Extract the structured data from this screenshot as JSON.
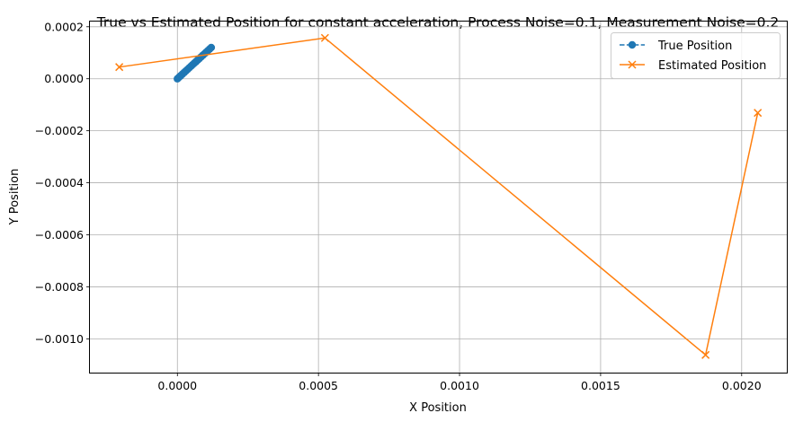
{
  "chart_data": {
    "type": "line",
    "title": "True vs Estimated Position for constant acceleration, Process Noise=0.1, Measurement Noise=0.2",
    "xlabel": "X Position",
    "ylabel": "Y Position",
    "xlim": [
      -0.00031,
      0.00216
    ],
    "ylim": [
      -0.00113,
      0.00022
    ],
    "grid": true,
    "legend_position": "top-right",
    "x_ticks": [
      0.0,
      0.0005,
      0.001,
      0.0015,
      0.002
    ],
    "x_tick_labels": [
      "0.0000",
      "0.0005",
      "0.0010",
      "0.0015",
      "0.0020"
    ],
    "y_ticks": [
      0.0002,
      0.0,
      -0.0002,
      -0.0004,
      -0.0006,
      -0.0008,
      -0.001
    ],
    "y_tick_labels": [
      "0.0002",
      "0.0000",
      "−0.0002",
      "−0.0004",
      "−0.0006",
      "−0.0008",
      "−0.0010"
    ],
    "series": [
      {
        "name": "True Position",
        "color": "#1f77b4",
        "marker": "circle",
        "line_style": "dashed",
        "x": [
          0.0,
          6e-06,
          1.2e-05,
          1.8e-05,
          2.4e-05,
          3e-05,
          3.6e-05,
          4.2e-05,
          4.8e-05,
          5.4e-05,
          6e-05,
          6.6e-05,
          7.2e-05,
          7.8e-05,
          8.4e-05,
          9e-05,
          9.6e-05,
          0.000102,
          0.000108,
          0.000114,
          0.00012
        ],
        "y": [
          0.0,
          6e-06,
          1.2e-05,
          1.8e-05,
          2.4e-05,
          3e-05,
          3.6e-05,
          4.2e-05,
          4.8e-05,
          5.4e-05,
          6e-05,
          6.6e-05,
          7.2e-05,
          7.8e-05,
          8.4e-05,
          9e-05,
          9.6e-05,
          0.000102,
          0.000108,
          0.000114,
          0.00012
        ]
      },
      {
        "name": "Estimated Position",
        "color": "#ff7f0e",
        "marker": "x",
        "line_style": "solid",
        "x": [
          -0.000206,
          0.000523,
          0.001872,
          0.002057
        ],
        "y": [
          4.5e-05,
          0.000157,
          -0.001062,
          -0.000131
        ]
      }
    ]
  }
}
